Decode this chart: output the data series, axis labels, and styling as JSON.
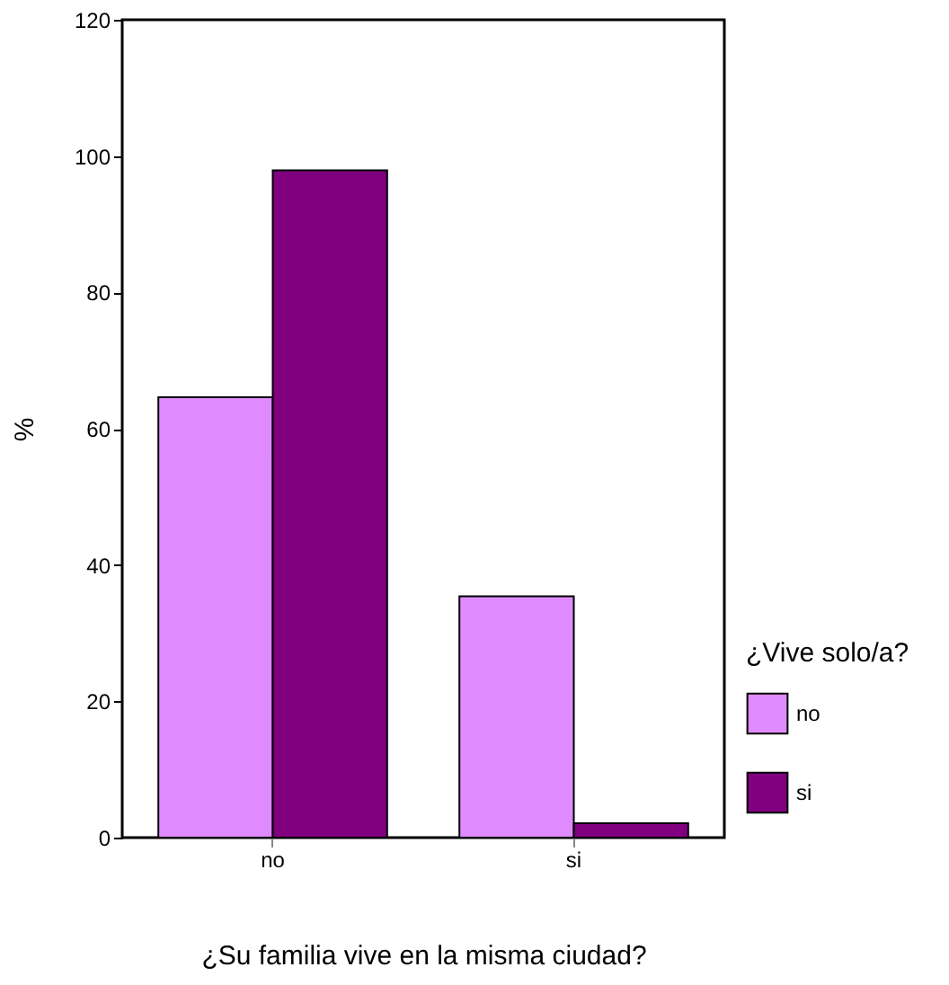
{
  "chart_data": {
    "type": "bar",
    "xlabel": "¿Su familia vive en la misma ciudad?",
    "ylabel": "%",
    "legend_title": "¿Vive solo/a?",
    "categories": [
      "no",
      "si"
    ],
    "series": [
      {
        "name": "no",
        "color": "#df8bff",
        "values": [
          64.6,
          35.4
        ]
      },
      {
        "name": "si",
        "color": "#800080",
        "values": [
          97.9,
          2.1
        ]
      }
    ],
    "ylim": [
      0,
      120
    ],
    "yticks": [
      0,
      20,
      40,
      60,
      80,
      100,
      120
    ],
    "grid": false,
    "legend": "right"
  }
}
